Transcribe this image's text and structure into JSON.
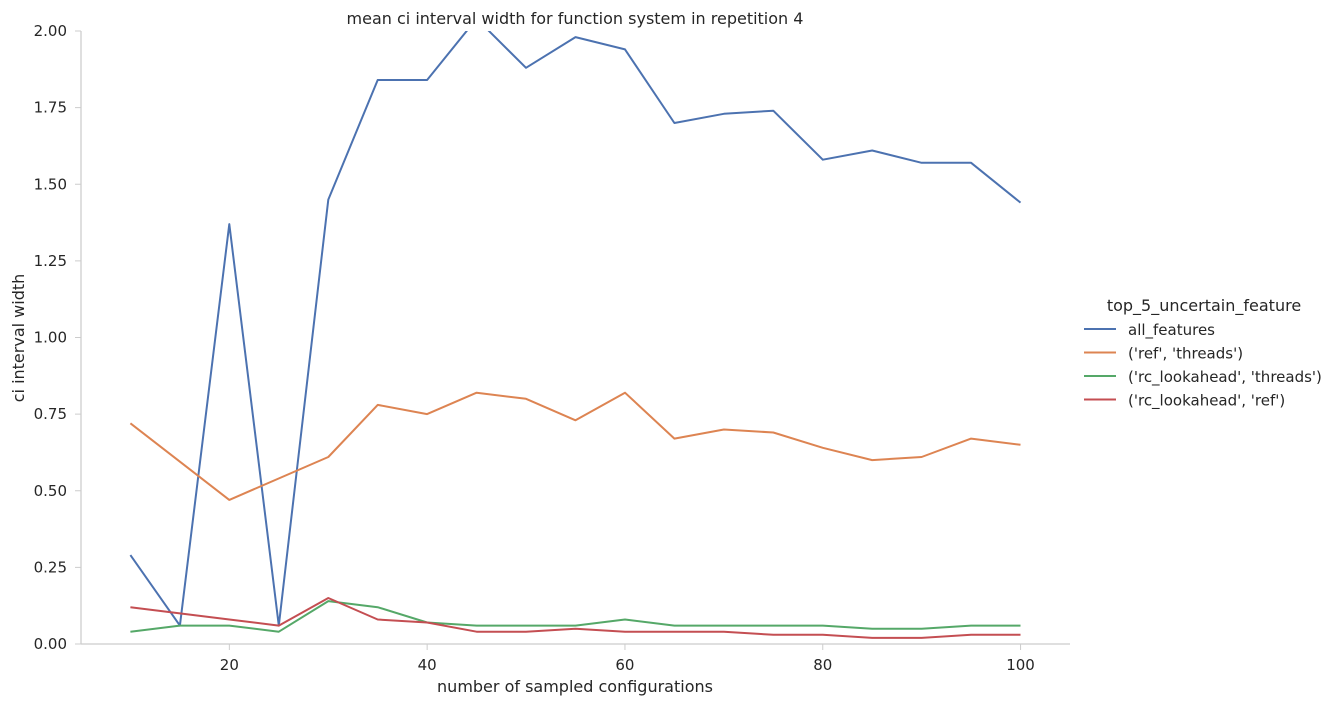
{
  "chart_data": {
    "type": "line",
    "title": "mean ci interval width for function system in repetition 4",
    "xlabel": "number of sampled configurations",
    "ylabel": "ci interval width",
    "xlim": [
      5,
      105
    ],
    "ylim": [
      0,
      2.0
    ],
    "grid": false,
    "legend_position": "right",
    "legend_title": "top_5_uncertain_feature",
    "xticks": [
      20,
      40,
      60,
      80,
      100
    ],
    "xtick_labels": [
      "20",
      "40",
      "60",
      "80",
      "100"
    ],
    "yticks": [
      0,
      0.25,
      0.5,
      0.75,
      1.0,
      1.25,
      1.5,
      1.75,
      2.0
    ],
    "ytick_labels": [
      "0.00",
      "0.25",
      "0.50",
      "0.75",
      "1.00",
      "1.25",
      "1.50",
      "1.75",
      "2.00"
    ],
    "x": [
      10,
      15,
      20,
      25,
      30,
      35,
      40,
      45,
      50,
      55,
      60,
      65,
      70,
      75,
      80,
      85,
      90,
      95,
      100
    ],
    "series": [
      {
        "name": "all_features",
        "color": "#4c72b0",
        "values": [
          0.29,
          0.06,
          1.37,
          0.06,
          1.45,
          1.84,
          1.84,
          2.04,
          1.88,
          1.98,
          1.94,
          1.7,
          1.73,
          1.74,
          1.58,
          1.61,
          1.57,
          1.57,
          1.44
        ]
      },
      {
        "name": "('ref', 'threads')",
        "color": "#dd8452",
        "values": [
          0.72,
          null,
          0.47,
          null,
          0.61,
          0.78,
          0.75,
          0.82,
          0.8,
          0.73,
          0.82,
          0.67,
          0.7,
          0.69,
          0.64,
          0.6,
          0.61,
          0.67,
          0.65
        ]
      },
      {
        "name": "('rc_lookahead', 'threads')",
        "color": "#55a868",
        "values": [
          0.04,
          0.06,
          0.06,
          0.04,
          0.14,
          0.12,
          0.07,
          0.06,
          0.06,
          0.06,
          0.08,
          0.06,
          0.06,
          0.06,
          0.06,
          0.05,
          0.05,
          0.06,
          0.06
        ]
      },
      {
        "name": "('rc_lookahead', 'ref')",
        "color": "#c44e52",
        "values": [
          0.12,
          null,
          0.08,
          0.06,
          0.15,
          0.08,
          0.07,
          0.04,
          0.04,
          0.05,
          0.04,
          0.04,
          0.04,
          0.03,
          0.03,
          0.02,
          0.02,
          0.03,
          0.03
        ]
      }
    ]
  }
}
